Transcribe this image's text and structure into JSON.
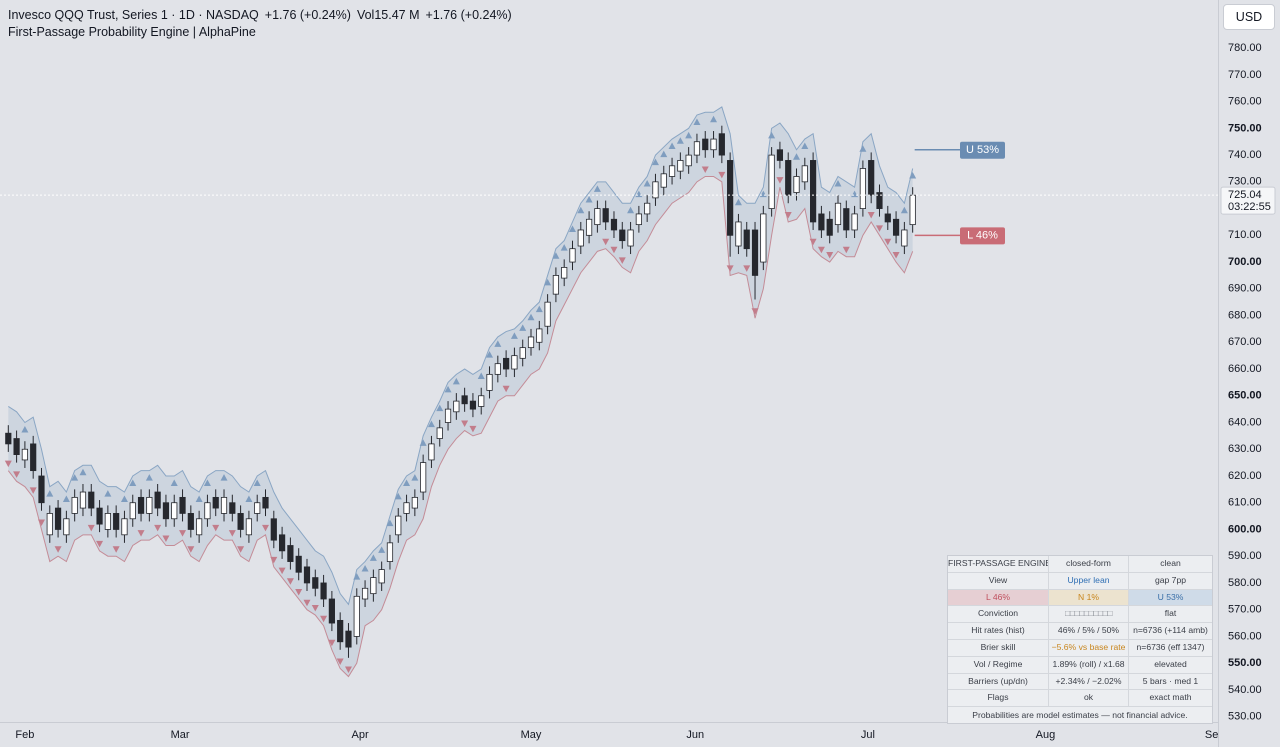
{
  "chart_data": {
    "type": "candlestick",
    "title": "Invesco QQQ Trust, Series 1 · 1D · NASDAQ",
    "change": "+1.76 (+0.24%)",
    "vol_label": "Vol",
    "vol": "15.47 M",
    "change2": "+1.76 (+0.24%)",
    "subtitle": "First-Passage Probability Engine | AlphaPine",
    "currency": "USD",
    "open": [
      636,
      634,
      626,
      632,
      620,
      598,
      608,
      598,
      606,
      608,
      614,
      608,
      600,
      606,
      598,
      604,
      612,
      606,
      614,
      610,
      604,
      612,
      606,
      598,
      604,
      612,
      606,
      610,
      606,
      598,
      606,
      612,
      604,
      598,
      594,
      590,
      586,
      582,
      580,
      574,
      566,
      562,
      560,
      574,
      576,
      580,
      588,
      598,
      606,
      608,
      614,
      626,
      634,
      640,
      644,
      650,
      648,
      646,
      652,
      658,
      664,
      660,
      664,
      668,
      670,
      676,
      688,
      694,
      700,
      706,
      710,
      714,
      720,
      716,
      712,
      706,
      714,
      718,
      724,
      728,
      732,
      734,
      736,
      740,
      746,
      742,
      748,
      738,
      706,
      712,
      712,
      700,
      720,
      742,
      738,
      726,
      730,
      738,
      718,
      716,
      714,
      720,
      712,
      720,
      738,
      726,
      718,
      716,
      706,
      714
    ],
    "high": [
      639,
      637,
      633,
      635,
      623,
      609,
      611,
      607,
      615,
      617,
      617,
      611,
      609,
      609,
      607,
      613,
      615,
      615,
      617,
      613,
      613,
      615,
      609,
      607,
      613,
      615,
      615,
      613,
      609,
      607,
      613,
      615,
      607,
      601,
      597,
      593,
      589,
      585,
      583,
      577,
      569,
      565,
      578,
      581,
      585,
      588,
      598,
      608,
      613,
      615,
      628,
      635,
      641,
      648,
      651,
      653,
      651,
      653,
      661,
      665,
      667,
      668,
      671,
      675,
      678,
      688,
      698,
      701,
      708,
      715,
      719,
      723,
      723,
      719,
      715,
      715,
      721,
      725,
      733,
      736,
      739,
      741,
      743,
      748,
      749,
      749,
      751,
      741,
      718,
      715,
      715,
      721,
      743,
      745,
      741,
      735,
      739,
      741,
      721,
      719,
      725,
      723,
      721,
      738,
      741,
      729,
      721,
      719,
      715,
      728
    ],
    "low": [
      629,
      625,
      623,
      619,
      607,
      595,
      597,
      595,
      603,
      605,
      605,
      599,
      597,
      597,
      595,
      601,
      603,
      603,
      605,
      601,
      601,
      603,
      597,
      595,
      601,
      605,
      603,
      603,
      597,
      595,
      603,
      605,
      593,
      589,
      585,
      581,
      577,
      575,
      571,
      562,
      555,
      552,
      557,
      571,
      573,
      577,
      585,
      595,
      603,
      605,
      611,
      623,
      631,
      637,
      641,
      644,
      642,
      643,
      649,
      655,
      657,
      657,
      661,
      665,
      667,
      673,
      685,
      691,
      697,
      703,
      707,
      711,
      712,
      709,
      705,
      703,
      711,
      715,
      721,
      725,
      729,
      731,
      733,
      737,
      739,
      739,
      737,
      702,
      703,
      702,
      686,
      697,
      717,
      735,
      722,
      723,
      727,
      712,
      709,
      707,
      711,
      709,
      709,
      717,
      722,
      717,
      712,
      707,
      703,
      711
    ],
    "close": [
      632,
      628,
      630,
      622,
      610,
      606,
      600,
      604,
      612,
      614,
      608,
      602,
      606,
      600,
      604,
      610,
      606,
      612,
      608,
      604,
      610,
      606,
      600,
      604,
      610,
      608,
      612,
      606,
      600,
      604,
      610,
      608,
      596,
      592,
      588,
      584,
      580,
      578,
      574,
      565,
      558,
      556,
      575,
      578,
      582,
      585,
      595,
      605,
      610,
      612,
      625,
      632,
      638,
      645,
      648,
      647,
      645,
      650,
      658,
      662,
      660,
      665,
      668,
      672,
      675,
      685,
      695,
      698,
      705,
      712,
      716,
      720,
      715,
      712,
      708,
      712,
      718,
      722,
      730,
      733,
      736,
      738,
      740,
      745,
      742,
      746,
      740,
      710,
      715,
      705,
      695,
      718,
      740,
      738,
      725,
      732,
      736,
      715,
      712,
      710,
      722,
      712,
      718,
      735,
      725,
      720,
      715,
      710,
      712,
      725
    ],
    "upper": [
      646,
      644,
      640,
      642,
      630,
      616,
      618,
      614,
      622,
      624,
      624,
      618,
      616,
      616,
      614,
      620,
      622,
      622,
      624,
      620,
      620,
      622,
      616,
      614,
      620,
      622,
      622,
      620,
      616,
      614,
      620,
      622,
      614,
      608,
      604,
      600,
      596,
      592,
      590,
      584,
      576,
      572,
      585,
      588,
      592,
      595,
      605,
      615,
      620,
      622,
      635,
      642,
      648,
      655,
      658,
      660,
      658,
      660,
      668,
      672,
      674,
      675,
      678,
      682,
      685,
      695,
      705,
      708,
      715,
      722,
      726,
      730,
      730,
      726,
      722,
      722,
      728,
      732,
      740,
      743,
      746,
      748,
      750,
      755,
      756,
      756,
      758,
      748,
      725,
      722,
      722,
      728,
      750,
      752,
      748,
      742,
      746,
      748,
      728,
      726,
      732,
      730,
      728,
      745,
      748,
      736,
      728,
      726,
      722,
      735
    ],
    "lower": [
      622,
      618,
      616,
      612,
      600,
      588,
      590,
      588,
      596,
      598,
      598,
      592,
      590,
      590,
      588,
      594,
      596,
      596,
      598,
      594,
      594,
      596,
      590,
      588,
      594,
      598,
      596,
      596,
      590,
      588,
      596,
      598,
      586,
      582,
      578,
      574,
      570,
      568,
      564,
      555,
      548,
      545,
      550,
      564,
      566,
      570,
      578,
      588,
      596,
      598,
      604,
      616,
      624,
      630,
      634,
      637,
      635,
      636,
      642,
      648,
      650,
      650,
      654,
      658,
      660,
      666,
      678,
      684,
      690,
      696,
      700,
      704,
      705,
      702,
      698,
      696,
      704,
      708,
      714,
      718,
      722,
      724,
      726,
      730,
      732,
      732,
      730,
      695,
      696,
      695,
      679,
      690,
      710,
      728,
      715,
      716,
      720,
      705,
      702,
      700,
      704,
      702,
      702,
      710,
      715,
      710,
      705,
      700,
      696,
      704
    ],
    "colors": {
      "up": "#ffffff",
      "down": "#26282e",
      "wick": "#26282e",
      "upper": "#8aa6c4",
      "lower": "#c48c97",
      "band": "#a9b9cf",
      "signal_up": "#7f9dbf",
      "signal_down": "#c27d8b"
    },
    "grid": false,
    "xlim": [
      -1,
      145.8
    ],
    "xticks": [
      {
        "value": 2,
        "label": "Feb"
      },
      {
        "value": 20.7,
        "label": "Mar"
      },
      {
        "value": 42.4,
        "label": "Apr"
      },
      {
        "value": 63,
        "label": "May"
      },
      {
        "value": 82.8,
        "label": "Jun"
      },
      {
        "value": 103.6,
        "label": "Jul"
      },
      {
        "value": 125,
        "label": "Aug"
      },
      {
        "value": 145.4,
        "label": "Sep"
      }
    ],
    "ylim": [
      528,
      798
    ],
    "yticks": [
      {
        "value": 530,
        "label": "530.00"
      },
      {
        "value": 540,
        "label": "540.00"
      },
      {
        "value": 550,
        "label": "550.00"
      },
      {
        "value": 560,
        "label": "560.00"
      },
      {
        "value": 570,
        "label": "570.00"
      },
      {
        "value": 580,
        "label": "580.00"
      },
      {
        "value": 590,
        "label": "590.00"
      },
      {
        "value": 600,
        "label": "600.00"
      },
      {
        "value": 610,
        "label": "610.00"
      },
      {
        "value": 620,
        "label": "620.00"
      },
      {
        "value": 630,
        "label": "630.00"
      },
      {
        "value": 640,
        "label": "640.00"
      },
      {
        "value": 650,
        "label": "650.00"
      },
      {
        "value": 660,
        "label": "660.00"
      },
      {
        "value": 670,
        "label": "670.00"
      },
      {
        "value": 680,
        "label": "680.00"
      },
      {
        "value": 690,
        "label": "690.00"
      },
      {
        "value": 700,
        "label": "700.00"
      },
      {
        "value": 710,
        "label": "710.00"
      },
      {
        "value": 720,
        "label": "720.00"
      },
      {
        "value": 730,
        "label": "730.00"
      },
      {
        "value": 740,
        "label": "740.00"
      },
      {
        "value": 750,
        "label": "750.00"
      },
      {
        "value": 760,
        "label": "760.00"
      },
      {
        "value": 770,
        "label": "770.00"
      },
      {
        "value": 780,
        "label": "780.00"
      }
    ],
    "last_price": 725.04,
    "countdown": "03:22:55",
    "barriers": [
      {
        "value": 742,
        "label": "U 53%",
        "color": "#6a8cb2"
      },
      {
        "value": 710,
        "label": "L 46%",
        "color": "#c96c76"
      }
    ],
    "table": {
      "rows": [
        [
          "FIRST-PASSAGE ENGINE",
          "closed-form",
          "clean"
        ],
        [
          "View",
          "Upper lean",
          "gap 7pp"
        ],
        [
          "L 46%",
          "N 1%",
          "U 53%"
        ],
        [
          "Conviction",
          "□□□□□□□□□□",
          "flat"
        ],
        [
          "Hit rates (hist)",
          "46% / 5% / 50%",
          "n=6736 (+114 amb)"
        ],
        [
          "Brier skill",
          "−5.6% vs base rate",
          "n=6736 (eff 1347)"
        ],
        [
          "Vol / Regime",
          "1.89% (roll) / x1.68",
          "elevated"
        ],
        [
          "Barriers (up/dn)",
          "+2.34% / −2.02%",
          "5 bars · med 1"
        ],
        [
          "Flags",
          "ok",
          "exact math"
        ]
      ],
      "footer": "Probabilities are model estimates — not financial advice."
    }
  }
}
